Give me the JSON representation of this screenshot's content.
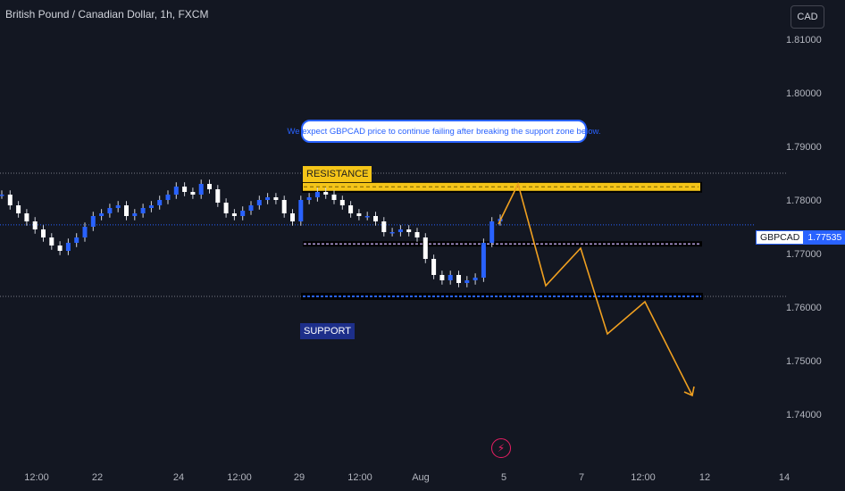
{
  "header": {
    "title": "British Pound / Canadian Dollar, 1h, FXCM"
  },
  "currency_button": "CAD",
  "price_label": {
    "symbol": "GBPCAD",
    "value": "1.77535"
  },
  "annotations": {
    "callout": "We expect GBPCAD price to continue failing after breaking the support zone below.",
    "resistance": "RESISTANCE",
    "support": "SUPPORT"
  },
  "colors": {
    "background": "#131722",
    "candle": "#2962ff",
    "wick": "#d1d4dc",
    "resistance": "#f5c518",
    "support": "#2962ff",
    "projection": "#f0a020"
  },
  "chart_data": {
    "type": "line",
    "title": "British Pound / Canadian Dollar, 1h, FXCM",
    "ylabel": "CAD",
    "ylim": [
      1.734,
      1.8155
    ],
    "y_ticks": [
      "1.81000",
      "1.80000",
      "1.79000",
      "1.78000",
      "1.77000",
      "1.76000",
      "1.75000",
      "1.74000"
    ],
    "x_ticks": [
      "12:00",
      "22",
      "24",
      "12:00",
      "29",
      "12:00",
      "Aug",
      "5",
      "7",
      "12:00",
      "12",
      "14"
    ],
    "grid": false,
    "series": [
      {
        "values": [
          1.781,
          1.779,
          1.7775,
          1.776,
          1.7745,
          1.773,
          1.7715,
          1.7705,
          1.772,
          1.773,
          1.775,
          1.777,
          1.7775,
          1.7785,
          1.779,
          1.777,
          1.7775,
          1.7785,
          1.779,
          1.78,
          1.781,
          1.7825,
          1.7815,
          1.781,
          1.783,
          1.782,
          1.7795,
          1.7775,
          1.777,
          1.778,
          1.779,
          1.78,
          1.7805,
          1.78,
          1.7775,
          1.776,
          1.78,
          1.7805,
          1.7815,
          1.781,
          1.78,
          1.779,
          1.7775,
          1.777,
          1.777,
          1.776,
          1.774,
          1.774,
          1.7745,
          1.774,
          1.773,
          1.769,
          1.766,
          1.765,
          1.766,
          1.7645,
          1.765,
          1.7655,
          1.772,
          1.776,
          1.7765
        ]
      },
      {
        "name": "projection",
        "values": [
          1.7755,
          1.783,
          1.764,
          1.771,
          1.755,
          1.761,
          1.7435
        ]
      }
    ],
    "levels": {
      "resistance": [
        1.7822,
        1.7832
      ],
      "middle": 1.7718,
      "support": 1.762,
      "current_price": 1.77535,
      "recent_high_dotted": 1.785
    }
  }
}
